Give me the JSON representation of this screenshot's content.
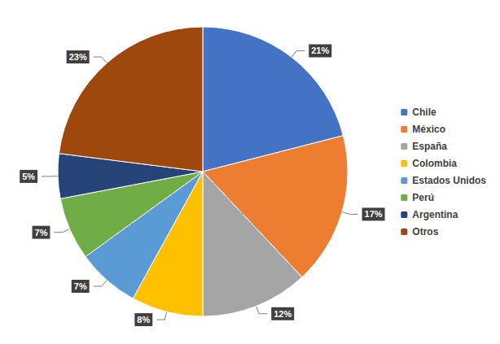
{
  "chart_data": {
    "type": "pie",
    "categories": [
      "Chile",
      "México",
      "España",
      "Colombia",
      "Estados Unidos",
      "Perú",
      "Argentina",
      "Otros"
    ],
    "values": [
      21,
      17,
      12,
      8,
      7,
      7,
      5,
      23
    ],
    "value_labels": [
      "21%",
      "17%",
      "12%",
      "8%",
      "7%",
      "7%",
      "5%",
      "23%"
    ],
    "colors": [
      "#4472c4",
      "#ed7d31",
      "#a5a5a5",
      "#ffc000",
      "#5b9bd5",
      "#70ad47",
      "#264478",
      "#9e480e"
    ],
    "data_labels": true,
    "legend": "right"
  }
}
